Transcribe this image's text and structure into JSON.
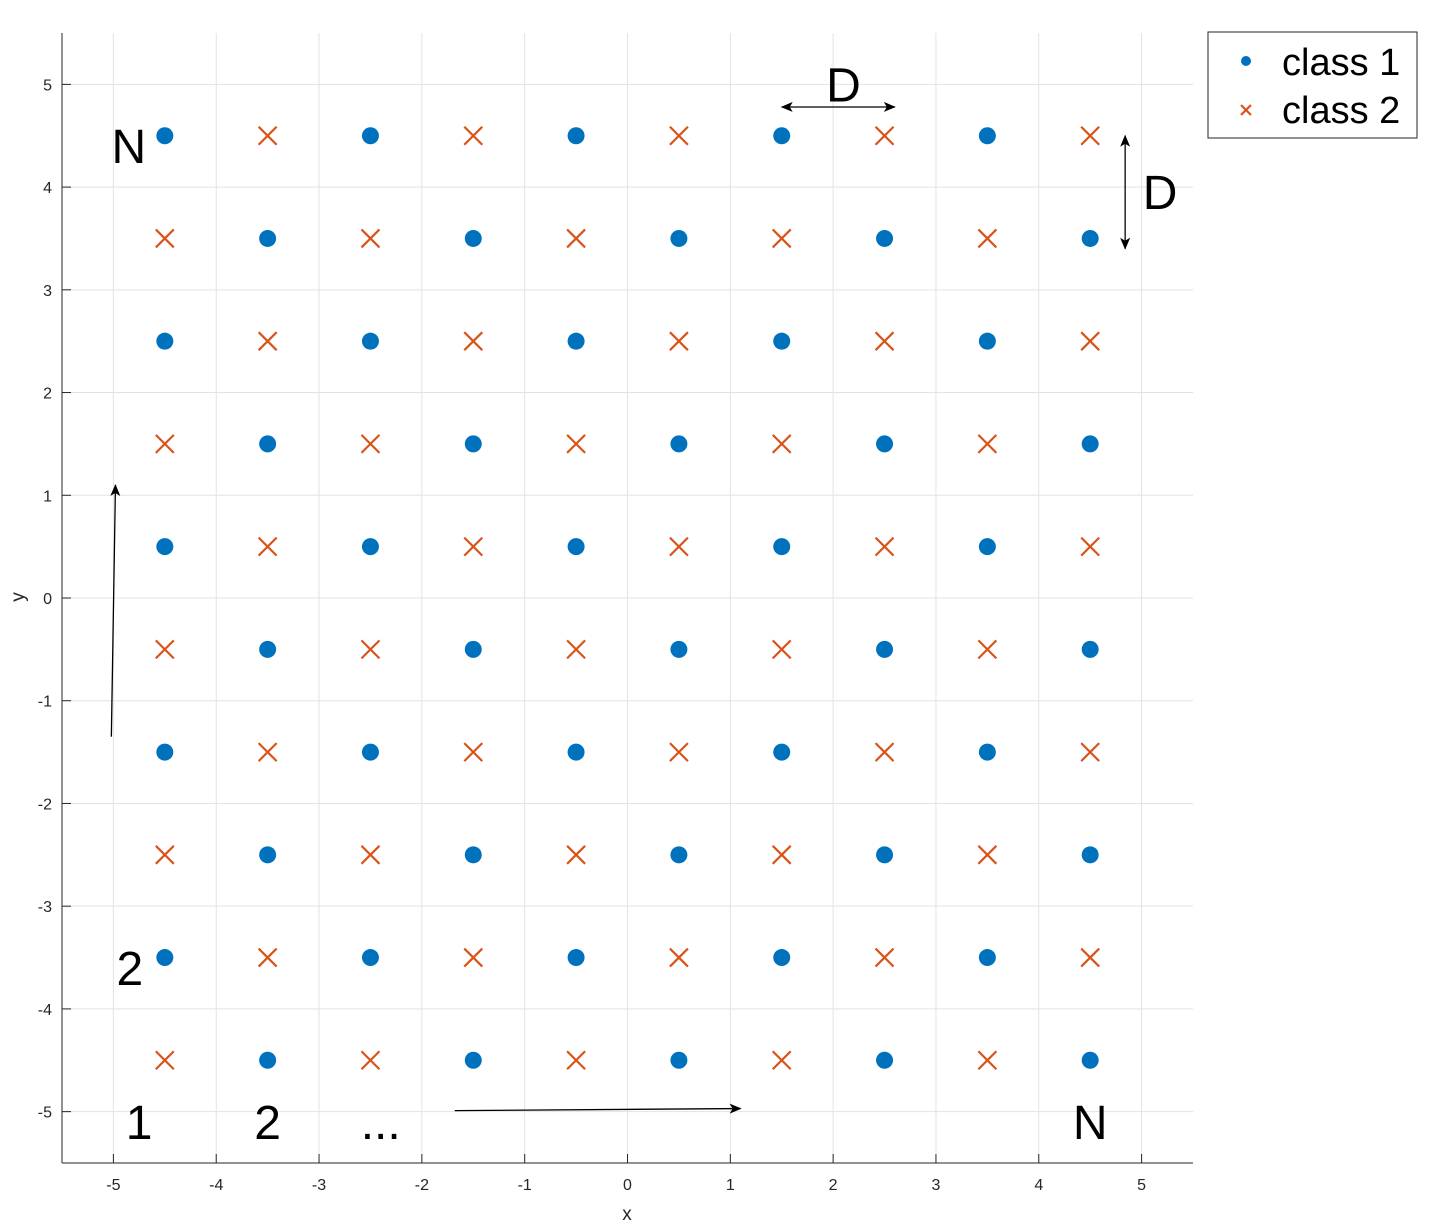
{
  "chart_data": {
    "type": "scatter",
    "xlabel": "x",
    "ylabel": "y",
    "xlim": [
      -5.5,
      5.5
    ],
    "ylim": [
      -5.5,
      5.5
    ],
    "xticks": [
      -5,
      -4,
      -3,
      -2,
      -1,
      0,
      1,
      2,
      3,
      4,
      5
    ],
    "yticks": [
      -5,
      -4,
      -3,
      -2,
      -1,
      0,
      1,
      2,
      3,
      4,
      5
    ],
    "grid": true,
    "legend_position": "outside-top-right",
    "series": [
      {
        "name": "class 1",
        "marker": "circle",
        "color": "#0072BD",
        "points": [
          [
            -4.5,
            4.5
          ],
          [
            -2.5,
            4.5
          ],
          [
            -0.5,
            4.5
          ],
          [
            1.5,
            4.5
          ],
          [
            3.5,
            4.5
          ],
          [
            -3.5,
            3.5
          ],
          [
            -1.5,
            3.5
          ],
          [
            0.5,
            3.5
          ],
          [
            2.5,
            3.5
          ],
          [
            4.5,
            3.5
          ],
          [
            -4.5,
            2.5
          ],
          [
            -2.5,
            2.5
          ],
          [
            -0.5,
            2.5
          ],
          [
            1.5,
            2.5
          ],
          [
            3.5,
            2.5
          ],
          [
            -3.5,
            1.5
          ],
          [
            -1.5,
            1.5
          ],
          [
            0.5,
            1.5
          ],
          [
            2.5,
            1.5
          ],
          [
            4.5,
            1.5
          ],
          [
            -4.5,
            0.5
          ],
          [
            -2.5,
            0.5
          ],
          [
            -0.5,
            0.5
          ],
          [
            1.5,
            0.5
          ],
          [
            3.5,
            0.5
          ],
          [
            -3.5,
            -0.5
          ],
          [
            -1.5,
            -0.5
          ],
          [
            0.5,
            -0.5
          ],
          [
            2.5,
            -0.5
          ],
          [
            4.5,
            -0.5
          ],
          [
            -4.5,
            -1.5
          ],
          [
            -2.5,
            -1.5
          ],
          [
            -0.5,
            -1.5
          ],
          [
            1.5,
            -1.5
          ],
          [
            3.5,
            -1.5
          ],
          [
            -3.5,
            -2.5
          ],
          [
            -1.5,
            -2.5
          ],
          [
            0.5,
            -2.5
          ],
          [
            2.5,
            -2.5
          ],
          [
            4.5,
            -2.5
          ],
          [
            -4.5,
            -3.5
          ],
          [
            -2.5,
            -3.5
          ],
          [
            -0.5,
            -3.5
          ],
          [
            1.5,
            -3.5
          ],
          [
            3.5,
            -3.5
          ],
          [
            -3.5,
            -4.5
          ],
          [
            -1.5,
            -4.5
          ],
          [
            0.5,
            -4.5
          ],
          [
            2.5,
            -4.5
          ],
          [
            4.5,
            -4.5
          ]
        ]
      },
      {
        "name": "class 2",
        "marker": "x",
        "color": "#D95319",
        "points": [
          [
            -3.5,
            4.5
          ],
          [
            -1.5,
            4.5
          ],
          [
            0.5,
            4.5
          ],
          [
            2.5,
            4.5
          ],
          [
            4.5,
            4.5
          ],
          [
            -4.5,
            3.5
          ],
          [
            -2.5,
            3.5
          ],
          [
            -0.5,
            3.5
          ],
          [
            1.5,
            3.5
          ],
          [
            3.5,
            3.5
          ],
          [
            -3.5,
            2.5
          ],
          [
            -1.5,
            2.5
          ],
          [
            0.5,
            2.5
          ],
          [
            2.5,
            2.5
          ],
          [
            4.5,
            2.5
          ],
          [
            -4.5,
            1.5
          ],
          [
            -2.5,
            1.5
          ],
          [
            -0.5,
            1.5
          ],
          [
            1.5,
            1.5
          ],
          [
            3.5,
            1.5
          ],
          [
            -3.5,
            0.5
          ],
          [
            -1.5,
            0.5
          ],
          [
            0.5,
            0.5
          ],
          [
            2.5,
            0.5
          ],
          [
            4.5,
            0.5
          ],
          [
            -4.5,
            -0.5
          ],
          [
            -2.5,
            -0.5
          ],
          [
            -0.5,
            -0.5
          ],
          [
            1.5,
            -0.5
          ],
          [
            3.5,
            -0.5
          ],
          [
            -3.5,
            -1.5
          ],
          [
            -1.5,
            -1.5
          ],
          [
            0.5,
            -1.5
          ],
          [
            2.5,
            -1.5
          ],
          [
            4.5,
            -1.5
          ],
          [
            -4.5,
            -2.5
          ],
          [
            -2.5,
            -2.5
          ],
          [
            -0.5,
            -2.5
          ],
          [
            1.5,
            -2.5
          ],
          [
            3.5,
            -2.5
          ],
          [
            -3.5,
            -3.5
          ],
          [
            -1.5,
            -3.5
          ],
          [
            0.5,
            -3.5
          ],
          [
            2.5,
            -3.5
          ],
          [
            4.5,
            -3.5
          ],
          [
            -4.5,
            -4.5
          ],
          [
            -2.5,
            -4.5
          ],
          [
            -0.5,
            -4.5
          ],
          [
            1.5,
            -4.5
          ],
          [
            3.5,
            -4.5
          ]
        ]
      }
    ],
    "annotations": {
      "texts": [
        {
          "text": "N",
          "x": -4.85,
          "y": 4.4
        },
        {
          "text": "2",
          "x": -4.84,
          "y": -3.6
        },
        {
          "text": "1",
          "x": -4.75,
          "y": -5.1
        },
        {
          "text": "2",
          "x": -3.5,
          "y": -5.1
        },
        {
          "text": "...",
          "x": -2.4,
          "y": -5.1
        },
        {
          "text": "N",
          "x": 4.5,
          "y": -5.1
        },
        {
          "text": "D",
          "x": 2.1,
          "y": 5.0
        },
        {
          "text": "D",
          "x": 5.18,
          "y": 3.95
        }
      ],
      "arrows": [
        {
          "from": [
            -5.02,
            -1.35
          ],
          "to": [
            -4.98,
            1.1
          ],
          "heads": "end"
        },
        {
          "from": [
            -1.68,
            -4.99
          ],
          "to": [
            1.1,
            -4.97
          ],
          "heads": "end"
        },
        {
          "from": [
            1.5,
            4.78
          ],
          "to": [
            2.6,
            4.78
          ],
          "heads": "both"
        },
        {
          "from": [
            4.84,
            4.5
          ],
          "to": [
            4.84,
            3.4
          ],
          "heads": "both"
        }
      ]
    }
  }
}
